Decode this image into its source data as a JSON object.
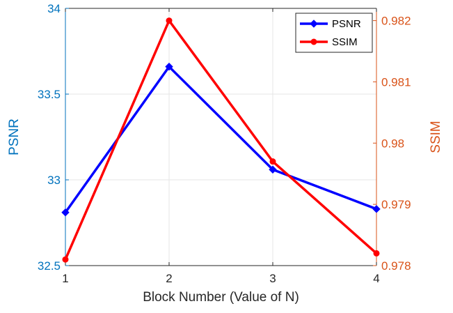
{
  "chart_data": {
    "type": "line",
    "x": [
      1,
      2,
      3,
      4
    ],
    "xlabel": "Block Number (Value of N)",
    "xlim": [
      1,
      4
    ],
    "x_ticks": [
      "1",
      "2",
      "3",
      "4"
    ],
    "grid": true,
    "legend_position": "top-right",
    "series": [
      {
        "name": "PSNR",
        "axis": "left",
        "color": "#0000ff",
        "marker": "diamond",
        "values": [
          32.81,
          33.66,
          33.06,
          32.83
        ]
      },
      {
        "name": "SSIM",
        "axis": "right",
        "color": "#ff0000",
        "marker": "circle",
        "values": [
          0.9781,
          0.982,
          0.9797,
          0.9782
        ]
      }
    ],
    "y_left": {
      "label": "PSNR",
      "ylim": [
        32.5,
        34
      ],
      "ticks": [
        "32.5",
        "33",
        "33.5",
        "34"
      ],
      "color": "#0072bd"
    },
    "y_right": {
      "label": "SSIM",
      "ylim": [
        0.978,
        0.9822
      ],
      "ticks": [
        "0.978",
        "0.979",
        "0.98",
        "0.981",
        "0.982"
      ],
      "color": "#d95319"
    }
  }
}
